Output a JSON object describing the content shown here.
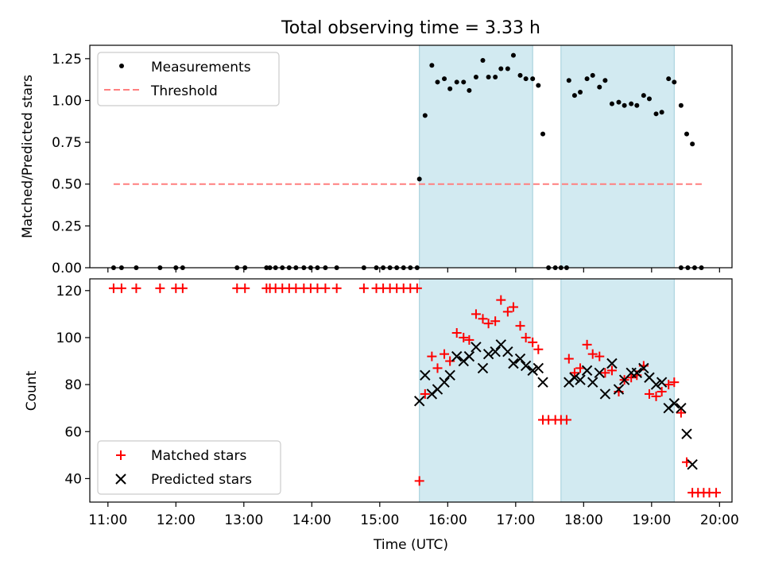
{
  "figure": {
    "title": "Total observing time = 3.33 h"
  },
  "chart_data": [
    {
      "type": "scatter",
      "ylabel": "Matched/Predicted stars",
      "xlabel": "",
      "xlim": [
        "10:44",
        "20:11"
      ],
      "ylim": [
        0,
        1.33
      ],
      "yticks": [
        0.0,
        0.25,
        0.5,
        0.75,
        1.0,
        1.25
      ],
      "ytick_labels": [
        "0.00",
        "0.25",
        "0.50",
        "0.75",
        "1.00",
        "1.25"
      ],
      "legend": {
        "placement": "top-left",
        "entries": [
          "Measurements",
          "Threshold"
        ]
      },
      "threshold": {
        "name": "Threshold",
        "value": 0.5,
        "x_range": [
          "11:05",
          "19:45"
        ],
        "color": "#ff7f7f"
      },
      "shaded_intervals": [
        [
          "15:35",
          "17:15"
        ],
        [
          "17:40",
          "19:20"
        ]
      ],
      "series": [
        {
          "name": "Measurements",
          "color": "#000000",
          "points": [
            [
              "11:05",
              0
            ],
            [
              "11:12",
              0
            ],
            [
              "11:25",
              0
            ],
            [
              "11:46",
              0
            ],
            [
              "12:00",
              0
            ],
            [
              "12:06",
              0
            ],
            [
              "12:54",
              0
            ],
            [
              "13:01",
              0
            ],
            [
              "13:20",
              0
            ],
            [
              "13:23",
              0
            ],
            [
              "13:28",
              0
            ],
            [
              "13:34",
              0
            ],
            [
              "13:40",
              0
            ],
            [
              "13:46",
              0
            ],
            [
              "13:53",
              0
            ],
            [
              "13:59",
              0
            ],
            [
              "14:05",
              0
            ],
            [
              "14:12",
              0
            ],
            [
              "14:22",
              0
            ],
            [
              "14:46",
              0
            ],
            [
              "14:57",
              0
            ],
            [
              "15:03",
              0
            ],
            [
              "15:09",
              0
            ],
            [
              "15:15",
              0
            ],
            [
              "15:21",
              0
            ],
            [
              "15:27",
              0
            ],
            [
              "15:33",
              0
            ],
            [
              "15:35",
              0.53
            ],
            [
              "15:40",
              0.91
            ],
            [
              "15:46",
              1.21
            ],
            [
              "15:51",
              1.11
            ],
            [
              "15:57",
              1.13
            ],
            [
              "16:02",
              1.07
            ],
            [
              "16:08",
              1.11
            ],
            [
              "16:14",
              1.11
            ],
            [
              "16:19",
              1.06
            ],
            [
              "16:25",
              1.14
            ],
            [
              "16:31",
              1.24
            ],
            [
              "16:36",
              1.14
            ],
            [
              "16:42",
              1.14
            ],
            [
              "16:47",
              1.19
            ],
            [
              "16:53",
              1.19
            ],
            [
              "16:58",
              1.27
            ],
            [
              "17:04",
              1.15
            ],
            [
              "17:09",
              1.13
            ],
            [
              "17:15",
              1.13
            ],
            [
              "17:20",
              1.09
            ],
            [
              "17:24",
              0.8
            ],
            [
              "17:29",
              0
            ],
            [
              "17:35",
              0
            ],
            [
              "17:40",
              0
            ],
            [
              "17:45",
              0
            ],
            [
              "17:47",
              1.12
            ],
            [
              "17:52",
              1.03
            ],
            [
              "17:57",
              1.05
            ],
            [
              "18:03",
              1.13
            ],
            [
              "18:08",
              1.15
            ],
            [
              "18:14",
              1.08
            ],
            [
              "18:19",
              1.12
            ],
            [
              "18:25",
              0.98
            ],
            [
              "18:31",
              0.99
            ],
            [
              "18:36",
              0.97
            ],
            [
              "18:42",
              0.98
            ],
            [
              "18:47",
              0.97
            ],
            [
              "18:53",
              1.03
            ],
            [
              "18:58",
              1.01
            ],
            [
              "19:04",
              0.92
            ],
            [
              "19:09",
              0.93
            ],
            [
              "19:15",
              1.13
            ],
            [
              "19:20",
              1.11
            ],
            [
              "19:26",
              0.97
            ],
            [
              "19:31",
              0.8
            ],
            [
              "19:36",
              0.74
            ],
            [
              "19:26",
              0
            ],
            [
              "19:32",
              0
            ],
            [
              "19:38",
              0
            ],
            [
              "19:44",
              0
            ]
          ]
        }
      ]
    },
    {
      "type": "scatter",
      "ylabel": "Count",
      "xlabel": "Time (UTC)",
      "xlim": [
        "10:44",
        "20:11"
      ],
      "ylim": [
        30,
        125
      ],
      "yticks": [
        40,
        60,
        80,
        100,
        120
      ],
      "xticks": [
        "11:00",
        "12:00",
        "13:00",
        "14:00",
        "15:00",
        "16:00",
        "17:00",
        "18:00",
        "19:00",
        "20:00"
      ],
      "legend": {
        "placement": "bottom-left",
        "entries": [
          "Matched stars",
          "Predicted stars"
        ]
      },
      "shaded_intervals": [
        [
          "15:35",
          "17:15"
        ],
        [
          "17:40",
          "19:20"
        ]
      ],
      "series": [
        {
          "name": "Matched stars",
          "marker": "+",
          "color": "#ff0000",
          "points": [
            [
              "11:05",
              121
            ],
            [
              "11:12",
              121
            ],
            [
              "11:25",
              121
            ],
            [
              "11:46",
              121
            ],
            [
              "12:00",
              121
            ],
            [
              "12:06",
              121
            ],
            [
              "12:54",
              121
            ],
            [
              "13:01",
              121
            ],
            [
              "13:20",
              121
            ],
            [
              "13:23",
              121
            ],
            [
              "13:28",
              121
            ],
            [
              "13:34",
              121
            ],
            [
              "13:40",
              121
            ],
            [
              "13:46",
              121
            ],
            [
              "13:53",
              121
            ],
            [
              "13:59",
              121
            ],
            [
              "14:05",
              121
            ],
            [
              "14:12",
              121
            ],
            [
              "14:22",
              121
            ],
            [
              "14:46",
              121
            ],
            [
              "14:57",
              121
            ],
            [
              "15:03",
              121
            ],
            [
              "15:09",
              121
            ],
            [
              "15:15",
              121
            ],
            [
              "15:21",
              121
            ],
            [
              "15:27",
              121
            ],
            [
              "15:33",
              121
            ],
            [
              "15:35",
              39
            ],
            [
              "15:40",
              76
            ],
            [
              "15:46",
              92
            ],
            [
              "15:51",
              87
            ],
            [
              "15:57",
              93
            ],
            [
              "16:02",
              90
            ],
            [
              "16:08",
              102
            ],
            [
              "16:14",
              100
            ],
            [
              "16:19",
              99
            ],
            [
              "16:25",
              110
            ],
            [
              "16:31",
              108
            ],
            [
              "16:36",
              106
            ],
            [
              "16:42",
              107
            ],
            [
              "16:47",
              116
            ],
            [
              "16:53",
              111
            ],
            [
              "16:58",
              113
            ],
            [
              "17:04",
              105
            ],
            [
              "17:09",
              100
            ],
            [
              "17:15",
              98
            ],
            [
              "17:20",
              95
            ],
            [
              "17:24",
              65
            ],
            [
              "17:29",
              65
            ],
            [
              "17:35",
              65
            ],
            [
              "17:40",
              65
            ],
            [
              "17:45",
              65
            ],
            [
              "17:47",
              91
            ],
            [
              "17:52",
              85
            ],
            [
              "17:57",
              87
            ],
            [
              "18:03",
              97
            ],
            [
              "18:08",
              93
            ],
            [
              "18:14",
              92
            ],
            [
              "18:19",
              85
            ],
            [
              "18:25",
              86
            ],
            [
              "18:31",
              77
            ],
            [
              "18:36",
              82
            ],
            [
              "18:42",
              83
            ],
            [
              "18:47",
              84
            ],
            [
              "18:53",
              88
            ],
            [
              "18:58",
              76
            ],
            [
              "19:04",
              75
            ],
            [
              "19:09",
              77
            ],
            [
              "19:15",
              80
            ],
            [
              "19:20",
              81
            ],
            [
              "19:26",
              68
            ],
            [
              "19:31",
              47
            ],
            [
              "19:36",
              34
            ],
            [
              "19:41",
              34
            ],
            [
              "19:46",
              34
            ],
            [
              "19:51",
              34
            ],
            [
              "19:57",
              34
            ]
          ]
        },
        {
          "name": "Predicted stars",
          "marker": "x",
          "color": "#000000",
          "points": [
            [
              "15:35",
              73
            ],
            [
              "15:40",
              84
            ],
            [
              "15:46",
              76
            ],
            [
              "15:51",
              78
            ],
            [
              "15:57",
              81
            ],
            [
              "16:02",
              84
            ],
            [
              "16:08",
              92
            ],
            [
              "16:14",
              90
            ],
            [
              "16:19",
              92
            ],
            [
              "16:25",
              96
            ],
            [
              "16:31",
              87
            ],
            [
              "16:36",
              93
            ],
            [
              "16:42",
              94
            ],
            [
              "16:47",
              97
            ],
            [
              "16:53",
              94
            ],
            [
              "16:58",
              89
            ],
            [
              "17:04",
              91
            ],
            [
              "17:09",
              88
            ],
            [
              "17:15",
              86
            ],
            [
              "17:20",
              87
            ],
            [
              "17:24",
              81
            ],
            [
              "17:47",
              81
            ],
            [
              "17:52",
              83
            ],
            [
              "17:57",
              82
            ],
            [
              "18:03",
              86
            ],
            [
              "18:08",
              81
            ],
            [
              "18:14",
              85
            ],
            [
              "18:19",
              76
            ],
            [
              "18:25",
              89
            ],
            [
              "18:31",
              78
            ],
            [
              "18:36",
              82
            ],
            [
              "18:42",
              85
            ],
            [
              "18:47",
              85
            ],
            [
              "18:53",
              87
            ],
            [
              "18:58",
              83
            ],
            [
              "19:04",
              80
            ],
            [
              "19:09",
              81
            ],
            [
              "19:15",
              70
            ],
            [
              "19:20",
              72
            ],
            [
              "19:26",
              70
            ],
            [
              "19:31",
              59
            ],
            [
              "19:36",
              46
            ]
          ]
        }
      ]
    }
  ],
  "colors": {
    "shade_fill": "#add8e6",
    "shade_edge": "#9fcdd9",
    "axes": "#000000",
    "legend_edge": "#cccccc"
  }
}
